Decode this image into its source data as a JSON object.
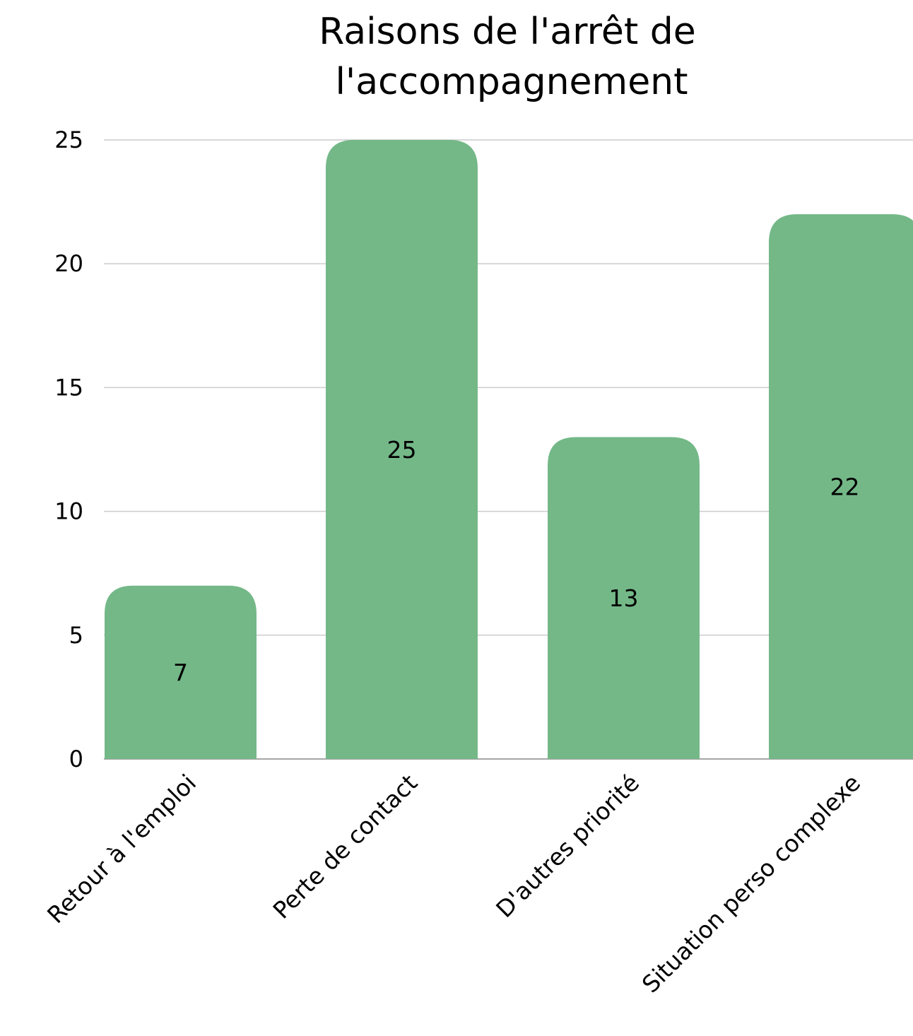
{
  "chart_data": {
    "type": "bar",
    "title_lines": [
      "Raisons de l'arrêt de",
      "l'accompagnement"
    ],
    "categories": [
      "Retour à l'emploi",
      "Perte de contact",
      "D'autres priorité",
      "Situation perso complexe"
    ],
    "values": [
      7,
      25,
      13,
      22
    ],
    "data_labels": [
      "7",
      "25",
      "13",
      "22"
    ],
    "ylim": [
      0,
      25
    ],
    "yticks": [
      0,
      5,
      10,
      15,
      20,
      25
    ],
    "ytick_labels": [
      "0",
      "5",
      "10",
      "15",
      "20",
      "25"
    ],
    "xlabel": "",
    "ylabel": "",
    "grid": true,
    "legend": "none",
    "bar_color": "#74b888"
  }
}
